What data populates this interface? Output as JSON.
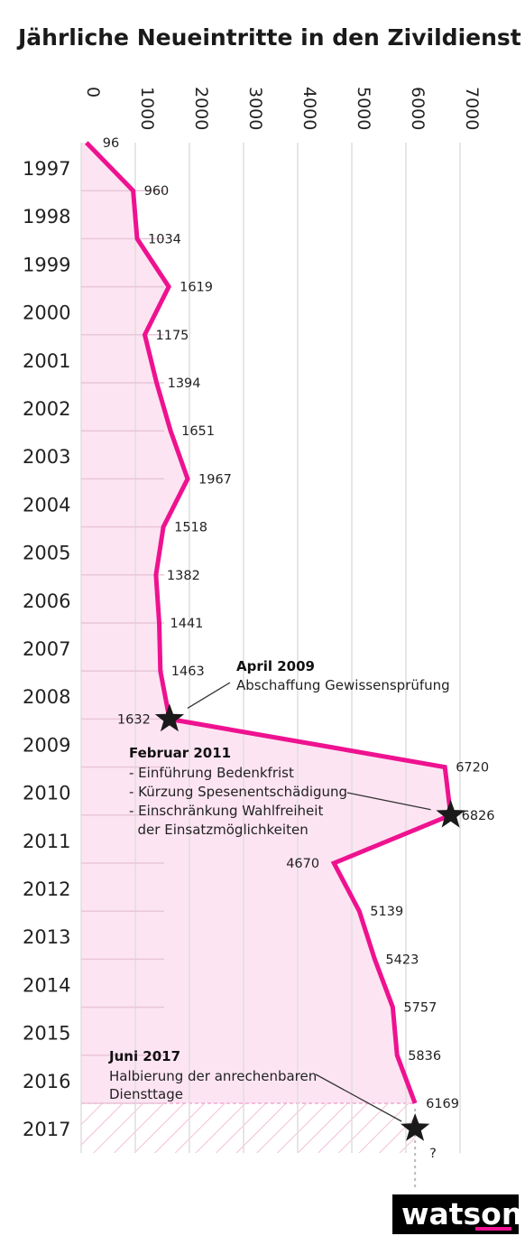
{
  "chart_data": {
    "type": "line",
    "title": "Jährliche Neueintritte in den Zivildienst",
    "xlim": [
      0,
      7000
    ],
    "x_ticks": [
      "0",
      "1000",
      "2000",
      "3000",
      "4000",
      "5000",
      "6000",
      "7000"
    ],
    "x_tick_values": [
      0,
      1000,
      2000,
      3000,
      4000,
      5000,
      6000,
      7000
    ],
    "categories": [
      "1997",
      "1998",
      "1999",
      "2000",
      "2001",
      "2002",
      "2003",
      "2004",
      "2005",
      "2006",
      "2007",
      "2008",
      "2009",
      "2010",
      "2011",
      "2012",
      "2013",
      "2014",
      "2015",
      "2016",
      "2017"
    ],
    "values": [
      96,
      960,
      1034,
      1619,
      1175,
      1394,
      1651,
      1967,
      1518,
      1382,
      1441,
      1463,
      1632,
      6720,
      6826,
      4670,
      5139,
      5423,
      5757,
      5836,
      6169
    ],
    "value_labels": [
      "96",
      "960",
      "1034",
      "1619",
      "1175",
      "1394",
      "1651",
      "1967",
      "1518",
      "1382",
      "1441",
      "1463",
      "1632",
      "6720",
      "6826",
      "4670",
      "5139",
      "5423",
      "5757",
      "5836",
      "6169"
    ],
    "unknown_label": "?",
    "annotations": [
      {
        "title": "April 2009",
        "lines": [
          "Abschaffung Gewissensprüfung"
        ]
      },
      {
        "title": "Februar 2011",
        "lines": [
          "- Einführung Bedenkfrist",
          "- Kürzung Spesenentschädigung",
          "- Einschränkung Wahlfreiheit",
          "  der Einsatzmöglichkeiten"
        ]
      },
      {
        "title": "Juni 2017",
        "lines": [
          "Halbierung der anrechenbaren",
          "Diensttage"
        ]
      }
    ],
    "colors": {
      "line": "#ee1290",
      "area": "#fde4f2",
      "grid": "#dedede",
      "hatch": "#f3a9cf"
    },
    "grid": true
  },
  "brand": {
    "logo_text": "watson",
    "accent": "#ee1290"
  }
}
